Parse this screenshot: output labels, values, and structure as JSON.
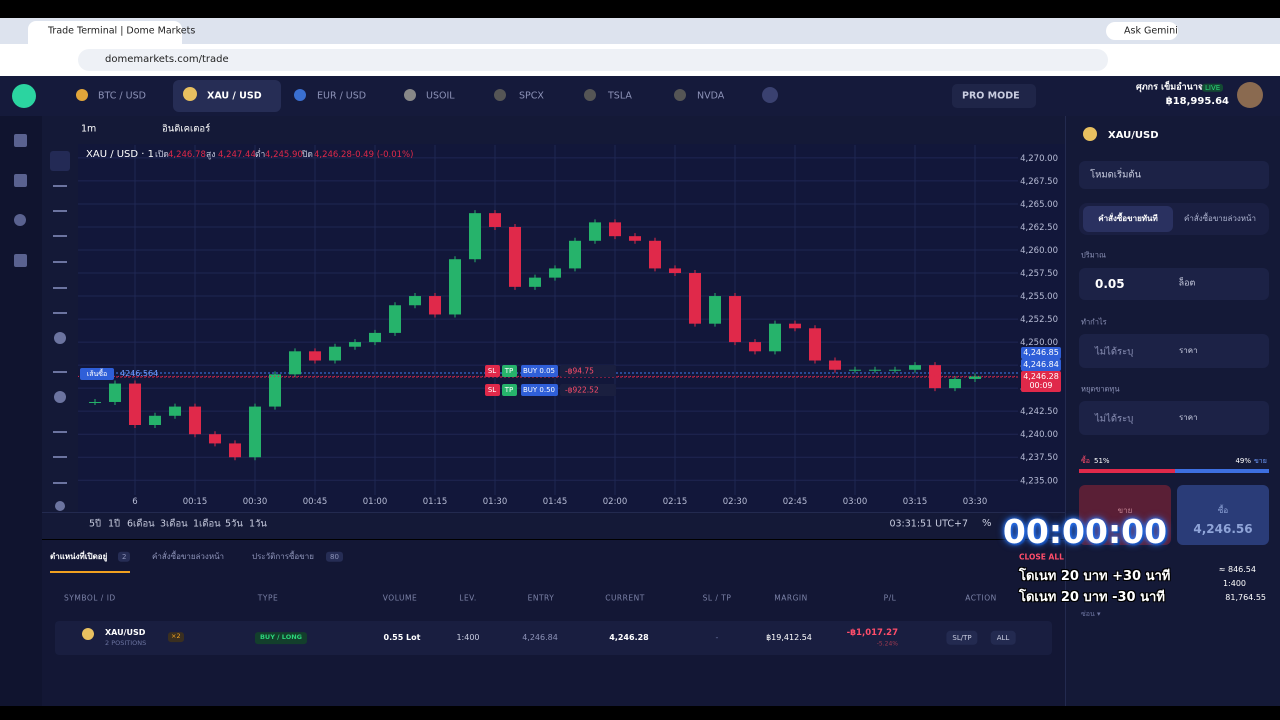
{
  "browser": {
    "tab_title": "Trade Terminal | Dome Markets",
    "url": "domemarkets.com/trade",
    "gemini": "Ask Gemini"
  },
  "header": {
    "tabs": [
      "BTC / USD",
      "XAU / USD",
      "EUR / USD",
      "USOIL",
      "SPCX",
      "TSLA",
      "NVDA"
    ],
    "pro_mode": "PRO MODE",
    "user_name": "ศุภกร เข็มอำนาจ",
    "live": "LIVE",
    "balance": "฿18,995.64"
  },
  "toolbar": {
    "interval": "1m",
    "indicators": "อินดิเคเตอร์"
  },
  "ohlc": {
    "symbol": "XAU / USD · 1",
    "open_label": "เปิด",
    "open": "4,246.78",
    "high_label": "สูง",
    "high": "4,247.44",
    "low_label": "ต่ำ",
    "low": "4,245.90",
    "close_label": "ปิด",
    "close": "4,246.28",
    "change": "-0.49 (-0.01%)"
  },
  "price_tags": [
    "4,246.85",
    "4,246.84",
    "4,246.28",
    "00:09"
  ],
  "buy_line": {
    "label": "เส้นซื้อ",
    "price": "4246.564"
  },
  "orders": [
    {
      "sl": "SL",
      "tp": "TP",
      "label": "BUY 0.05",
      "pnl": "-฿94.75"
    },
    {
      "sl": "SL",
      "tp": "TP",
      "label": "BUY 0.50",
      "pnl": "-฿922.52"
    }
  ],
  "chart_data": {
    "type": "candlestick",
    "up_color": "#26b36b",
    "down_color": "#e0294a",
    "grid": true,
    "x": [
      -10,
      -5,
      0,
      5,
      10,
      15,
      20,
      25,
      30,
      35,
      40,
      45,
      50,
      55,
      60,
      65,
      70,
      75,
      80,
      85,
      90,
      95,
      100,
      105,
      110,
      115,
      120,
      125,
      130,
      135,
      140,
      145,
      150,
      155,
      160,
      165,
      170,
      175,
      180,
      185,
      190,
      195,
      200,
      205,
      210
    ],
    "values": [
      4243.5,
      4245.5,
      4241,
      4242,
      4243,
      4240,
      4239,
      4237.5,
      4243,
      4246.5,
      4249,
      4248,
      4249.5,
      4250,
      4251,
      4254,
      4255,
      4253,
      4259,
      4264,
      4262.5,
      4256,
      4257,
      4258,
      4261,
      4263,
      4261.5,
      4261,
      4258,
      4257.5,
      4252,
      4255,
      4250,
      4249,
      4252,
      4251.5,
      4248,
      4247,
      4247,
      4247,
      4247,
      4247.5,
      4245,
      4246,
      4246.28
    ],
    "xlim": [
      -14.25,
      220.75
    ],
    "xticks": [
      {
        "value": 0,
        "label": "6"
      },
      {
        "value": 15,
        "label": "00:15"
      },
      {
        "value": 30,
        "label": "00:30"
      },
      {
        "value": 45,
        "label": "00:45"
      },
      {
        "value": 60,
        "label": "01:00"
      },
      {
        "value": 75,
        "label": "01:15"
      },
      {
        "value": 90,
        "label": "01:30"
      },
      {
        "value": 105,
        "label": "01:45"
      },
      {
        "value": 120,
        "label": "02:00"
      },
      {
        "value": 135,
        "label": "02:15"
      },
      {
        "value": 150,
        "label": "02:30"
      },
      {
        "value": 165,
        "label": "02:45"
      },
      {
        "value": 180,
        "label": "03:00"
      },
      {
        "value": 195,
        "label": "03:15"
      },
      {
        "value": 210,
        "label": "03:30"
      }
    ],
    "ylim": [
      4233.4,
      4271.4
    ],
    "yticks": [
      {
        "value": 4235,
        "label": "4,235.00"
      },
      {
        "value": 4237.5,
        "label": "4,237.50"
      },
      {
        "value": 4240,
        "label": "4,240.00"
      },
      {
        "value": 4242.5,
        "label": "4,242.50"
      },
      {
        "value": 4245,
        "label": "4,245.00"
      },
      {
        "value": 4247.5,
        "label": "4,247.50"
      },
      {
        "value": 4250,
        "label": "4,250.00"
      },
      {
        "value": 4252.5,
        "label": "4,252.50"
      },
      {
        "value": 4255,
        "label": "4,255.00"
      },
      {
        "value": 4257.5,
        "label": "4,257.50"
      },
      {
        "value": 4260,
        "label": "4,260.00"
      },
      {
        "value": 4262.5,
        "label": "4,262.50"
      },
      {
        "value": 4265,
        "label": "4,265.00"
      },
      {
        "value": 4267.5,
        "label": "4,267.50"
      },
      {
        "value": 4270,
        "label": "4,270.00"
      }
    ]
  },
  "periods": [
    "5ปี",
    "1ปี",
    "6เดือน",
    "3เดือน",
    "1เดือน",
    "5วัน",
    "1วัน"
  ],
  "clock": "03:31:51 UTC+7",
  "percent": "%",
  "positions": {
    "tabs": [
      {
        "label": "ตำแหน่งที่เปิดอยู่",
        "count": "2"
      },
      {
        "label": "คำสั่งซื้อขายล่วงหน้า"
      },
      {
        "label": "ประวัติการซื้อขาย",
        "count": "80"
      }
    ],
    "close_all": "CLOSE ALL",
    "columns": [
      "SYMBOL / ID",
      "TYPE",
      "VOLUME",
      "LEV.",
      "ENTRY",
      "CURRENT",
      "SL / TP",
      "MARGIN",
      "P/L",
      "ACTION"
    ],
    "row": {
      "symbol": "XAU/USD",
      "sub": "2 POSITIONS",
      "count": "×2",
      "type": "BUY / LONG",
      "volume": "0.55 Lot",
      "lev": "1:400",
      "entry": "4,246.84",
      "current": "4,246.28",
      "sltp": "-",
      "margin": "฿19,412.54",
      "pl": "-฿1,017.27",
      "pl_pct": "-5.24%",
      "sltp_btn": "SL/TP",
      "all_btn": "ALL"
    }
  },
  "trade_panel": {
    "symbol": "XAU/USD",
    "mode": "โหมดเริ่มต้น",
    "tab_market": "คำสั่งซื้อขายทันที",
    "tab_pending": "คำสั่งซื้อขายล่วงหน้า",
    "volume_label": "ปริมาณ",
    "volume": "0.05",
    "lot": "ล็อต",
    "tp_label": "ทำกำไร",
    "tp_value": "ไม่ได้ระบุ",
    "tp_unit": "ราคา",
    "sl_label": "หยุดขาดทุน",
    "sl_value": "ไม่ได้ระบุ",
    "sl_unit": "ราคา",
    "buy_word": "ซื้อ",
    "buy_pct": "51%",
    "sell_pct": "49%",
    "sell_word": "ขาย",
    "sell_btn": "ขาย",
    "buy_btn": "ซื้อ",
    "buy_price": "4,246.56",
    "fee": "≈ 846.54",
    "leverage": "1:400",
    "margin": "81,764.55",
    "hide": "ซ่อน ▾"
  },
  "overlay": {
    "timer": "00:00:00",
    "line1": "โดเนท 20 บาท +30 นาที",
    "line2": "โดเนท 20 บาท -30 นาที"
  }
}
